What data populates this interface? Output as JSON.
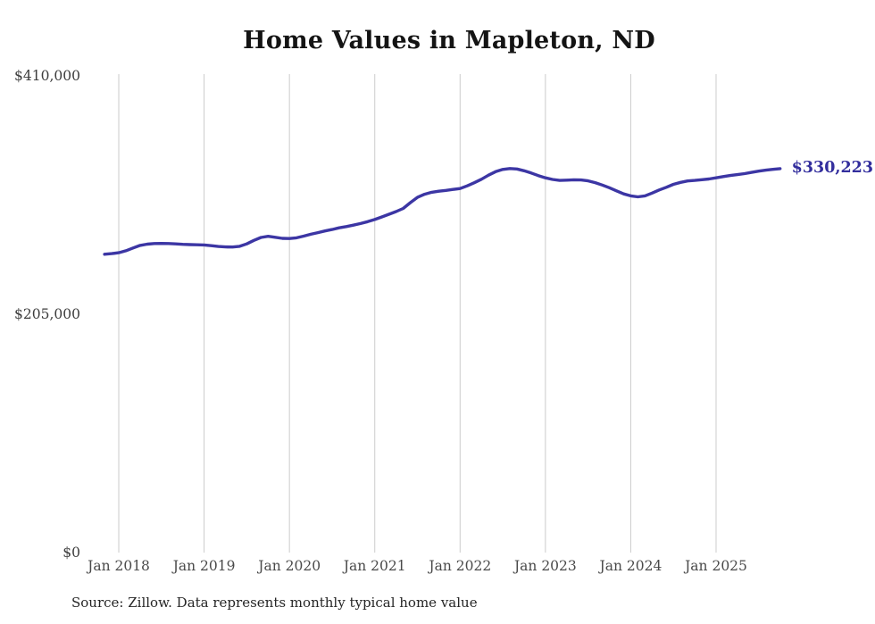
{
  "page": {
    "background_color": "#ffffff"
  },
  "chart_data": {
    "type": "line",
    "title": "Home Values in Mapleton, ND",
    "source": "Source: Zillow. Data represents monthly typical home value",
    "unit": "USD",
    "legend": "none",
    "grid": "vertical-only",
    "grid_color": "#cccccc",
    "line_color": "#3c36a4",
    "value_label_color": "#332e9d",
    "end_label": "$330,223",
    "end_value": 330223,
    "ylim": [
      0,
      410000
    ],
    "y_ticks": [
      {
        "label": "$0",
        "value": 0
      },
      {
        "label": "$205,000",
        "value": 205000
      },
      {
        "label": "$410,000",
        "value": 410000
      }
    ],
    "x_ticks": [
      {
        "label": "Jan 2018",
        "index": 2
      },
      {
        "label": "Jan 2019",
        "index": 14
      },
      {
        "label": "Jan 2020",
        "index": 26
      },
      {
        "label": "Jan 2021",
        "index": 38
      },
      {
        "label": "Jan 2022",
        "index": 50
      },
      {
        "label": "Jan 2023",
        "index": 62
      },
      {
        "label": "Jan 2024",
        "index": 74
      },
      {
        "label": "Jan 2025",
        "index": 86
      }
    ],
    "x": [
      "2017-11",
      "2017-12",
      "2018-01",
      "2018-02",
      "2018-03",
      "2018-04",
      "2018-05",
      "2018-06",
      "2018-07",
      "2018-08",
      "2018-09",
      "2018-10",
      "2018-11",
      "2018-12",
      "2019-01",
      "2019-02",
      "2019-03",
      "2019-04",
      "2019-05",
      "2019-06",
      "2019-07",
      "2019-08",
      "2019-09",
      "2019-10",
      "2019-11",
      "2019-12",
      "2020-01",
      "2020-02",
      "2020-03",
      "2020-04",
      "2020-05",
      "2020-06",
      "2020-07",
      "2020-08",
      "2020-09",
      "2020-10",
      "2020-11",
      "2020-12",
      "2021-01",
      "2021-02",
      "2021-03",
      "2021-04",
      "2021-05",
      "2021-06",
      "2021-07",
      "2021-08",
      "2021-09",
      "2021-10",
      "2021-11",
      "2021-12",
      "2022-01",
      "2022-02",
      "2022-03",
      "2022-04",
      "2022-05",
      "2022-06",
      "2022-07",
      "2022-08",
      "2022-09",
      "2022-10",
      "2022-11",
      "2022-12",
      "2023-01",
      "2023-02",
      "2023-03",
      "2023-04",
      "2023-05",
      "2023-06",
      "2023-07",
      "2023-08",
      "2023-09",
      "2023-10",
      "2023-11",
      "2023-12",
      "2024-01",
      "2024-02",
      "2024-03",
      "2024-04",
      "2024-05",
      "2024-06",
      "2024-07",
      "2024-08",
      "2024-09",
      "2024-10",
      "2024-11",
      "2024-12",
      "2025-01",
      "2025-02",
      "2025-03",
      "2025-04",
      "2025-05",
      "2025-06",
      "2025-07",
      "2025-08",
      "2025-09",
      "2025-10"
    ],
    "values": [
      256600,
      257100,
      257900,
      259600,
      262000,
      264200,
      265300,
      265800,
      265900,
      265800,
      265500,
      265100,
      264900,
      264700,
      264600,
      264000,
      263300,
      262900,
      262800,
      263400,
      265500,
      268500,
      271000,
      272000,
      271200,
      270300,
      270100,
      270700,
      272200,
      273800,
      275200,
      276600,
      277900,
      279300,
      280400,
      281600,
      283000,
      284600,
      286500,
      288700,
      291000,
      293300,
      296000,
      301000,
      305500,
      308200,
      309900,
      310800,
      311500,
      312300,
      313100,
      315400,
      318100,
      321100,
      324600,
      327600,
      329500,
      330300,
      329900,
      328400,
      326500,
      324200,
      322300,
      320900,
      320100,
      320300,
      320600,
      320500,
      319700,
      318200,
      316100,
      313800,
      311100,
      308500,
      306800,
      306000,
      306800,
      309200,
      311900,
      314200,
      316700,
      318400,
      319600,
      320100,
      320700,
      321300,
      322300,
      323400,
      324300,
      325100,
      325900,
      327000,
      328100,
      328900,
      329600,
      330223
    ]
  }
}
